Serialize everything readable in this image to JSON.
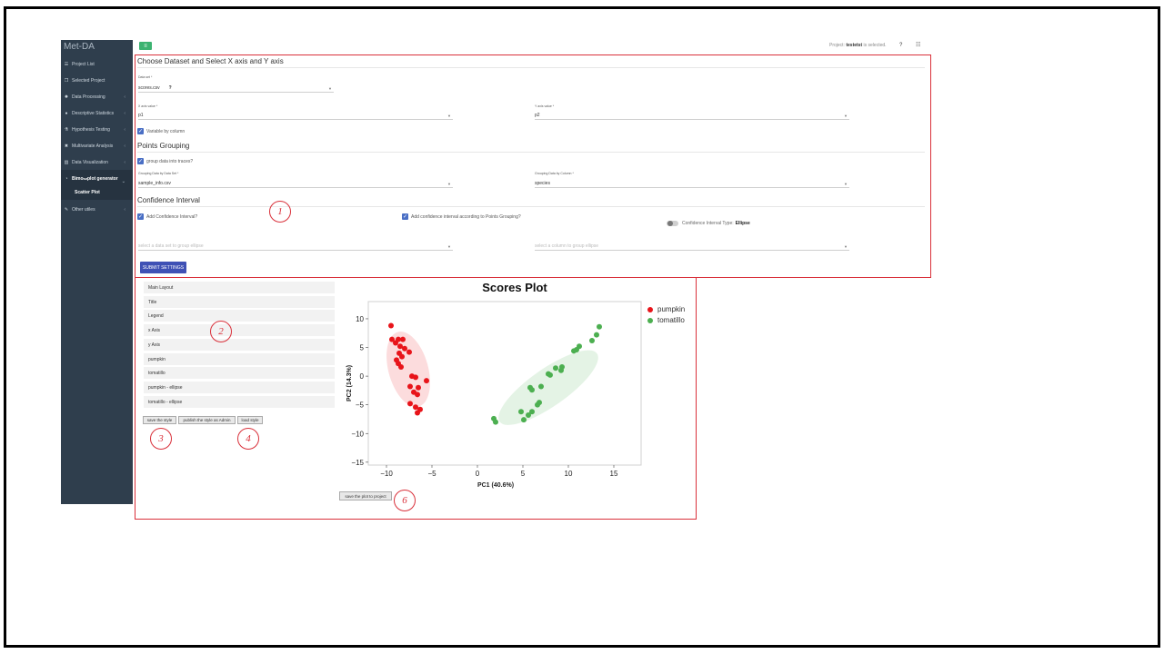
{
  "app": {
    "brand": "Met-DA"
  },
  "sidebar": {
    "items": [
      {
        "label": "Project List",
        "icon": "list-icon"
      },
      {
        "label": "Selected Project",
        "icon": "copy-icon"
      },
      {
        "label": "Data Processing",
        "icon": "gear-icon",
        "chevron": "‹"
      },
      {
        "label": "Descriptive Statistics",
        "icon": "palette-icon",
        "chevron": "‹"
      },
      {
        "label": "Hypothesis Testing",
        "icon": "flask-icon",
        "chevron": "‹"
      },
      {
        "label": "Multivariate Analysis",
        "icon": "cubes-icon",
        "chevron": "‹"
      },
      {
        "label": "Data Visualization",
        "icon": "bar-chart-icon",
        "chevron": "‹"
      },
      {
        "label": "Bimo",
        "sup": "SM",
        "label_tail": " plot generator",
        "icon": "chart-icon",
        "chevron": "⌄"
      },
      {
        "label": "Other utiles",
        "icon": "wrench-icon",
        "chevron": "‹"
      }
    ],
    "subitem": "Scatter Plot"
  },
  "topbar": {
    "project_prefix": "Project:",
    "project_name": "testetst",
    "project_suffix": "is selected.",
    "help": "?",
    "grid": "☷"
  },
  "section1": {
    "title": "Choose Dataset and Select X axis and Y axis",
    "dataset_label": "Data set *",
    "dataset_value": "scores.csv",
    "x_label": "X axis value *",
    "x_value": "p1",
    "y_label": "Y axis value *",
    "y_value": "p2",
    "variable_by_column": "Variable by column"
  },
  "section2": {
    "title": "Points Grouping",
    "group_check": "group data into traces?",
    "group_ds_label": "Grouping Data by Data Set *",
    "group_ds_value": "sample_info.csv",
    "group_col_label": "Grouping Data by Column *",
    "group_col_value": "species"
  },
  "section3": {
    "title": "Confidence Interval",
    "add_ci": "Add Confidence Interval?",
    "add_ci_group": "Add confidence interval according to Points Grouping?",
    "ci_type_label": "Confidence Interval Type:",
    "ci_type_value": "Ellipse",
    "ellipse_ds_placeholder": "select a data set to group ellipse",
    "ellipse_col_placeholder": "select a column to group ellipse"
  },
  "submit_label": "SUBMIT SETTINGS",
  "style_panel": {
    "items": [
      "Main Layout",
      "Title",
      "Legend",
      "x Axis",
      "y Axis",
      "pumpkin",
      "tomatillo",
      "pumpkin - ellipse",
      "tomatillo - ellipse"
    ],
    "save_style": "save the style",
    "publish_style": "publish the style as Admin",
    "load_style": "load style"
  },
  "save_plot": "save the plot to project",
  "callouts": [
    "1",
    "2",
    "3",
    "4",
    "6"
  ],
  "colors": {
    "pumpkin": "#e8141a",
    "tomatillo": "#4caf50",
    "accent": "#3f51b5",
    "annotation": "#d9303a"
  },
  "chart_data": {
    "type": "scatter",
    "title": "Scores Plot",
    "xlabel": "PC1 (40.6%)",
    "ylabel": "PC2 (14.3%)",
    "xlim": [
      -12,
      18
    ],
    "ylim": [
      -15.5,
      13
    ],
    "xticks": [
      -10,
      -5,
      0,
      5,
      10,
      15
    ],
    "yticks": [
      10,
      5,
      0,
      -5,
      -10,
      -15
    ],
    "legend_position": "top-right",
    "series": [
      {
        "name": "pumpkin",
        "color": "#e8141a",
        "points": [
          [
            -9.5,
            8.8
          ],
          [
            -9.4,
            6.4
          ],
          [
            -9.0,
            5.8
          ],
          [
            -8.7,
            6.4
          ],
          [
            -8.5,
            5.2
          ],
          [
            -8.2,
            6.4
          ],
          [
            -8.0,
            4.8
          ],
          [
            -7.5,
            4.2
          ],
          [
            -8.6,
            4.0
          ],
          [
            -8.3,
            3.4
          ],
          [
            -8.7,
            2.2
          ],
          [
            -8.4,
            1.6
          ],
          [
            -8.9,
            2.8
          ],
          [
            -7.2,
            0.0
          ],
          [
            -6.8,
            -0.2
          ],
          [
            -7.4,
            -1.8
          ],
          [
            -6.5,
            -2.0
          ],
          [
            -5.6,
            -0.8
          ],
          [
            -7.0,
            -2.8
          ],
          [
            -6.6,
            -3.2
          ],
          [
            -7.4,
            -4.8
          ],
          [
            -6.8,
            -5.4
          ],
          [
            -6.6,
            -6.4
          ],
          [
            -6.3,
            -5.8
          ]
        ]
      },
      {
        "name": "tomatillo",
        "color": "#4caf50",
        "points": [
          [
            1.8,
            -7.4
          ],
          [
            2.0,
            -8.0
          ],
          [
            4.8,
            -6.2
          ],
          [
            5.1,
            -7.6
          ],
          [
            5.6,
            -6.8
          ],
          [
            6.0,
            -6.2
          ],
          [
            6.6,
            -5.0
          ],
          [
            6.8,
            -4.6
          ],
          [
            7.0,
            -1.8
          ],
          [
            5.8,
            -2.0
          ],
          [
            6.0,
            -2.4
          ],
          [
            7.8,
            0.4
          ],
          [
            8.0,
            0.2
          ],
          [
            8.6,
            1.4
          ],
          [
            9.2,
            1.0
          ],
          [
            9.3,
            1.6
          ],
          [
            10.6,
            4.4
          ],
          [
            10.9,
            4.6
          ],
          [
            11.2,
            5.2
          ],
          [
            12.6,
            6.2
          ],
          [
            13.1,
            7.2
          ],
          [
            13.4,
            8.6
          ]
        ]
      }
    ],
    "ellipses": [
      {
        "series": "pumpkin",
        "cx": -7.6,
        "cy": 1.2,
        "rx": 13.2,
        "ry": 2.2,
        "angle_deg": -80
      },
      {
        "series": "tomatillo",
        "cx": 7.8,
        "cy": -2.0,
        "rx": 16.0,
        "ry": 2.4,
        "angle_deg": 48
      }
    ]
  }
}
